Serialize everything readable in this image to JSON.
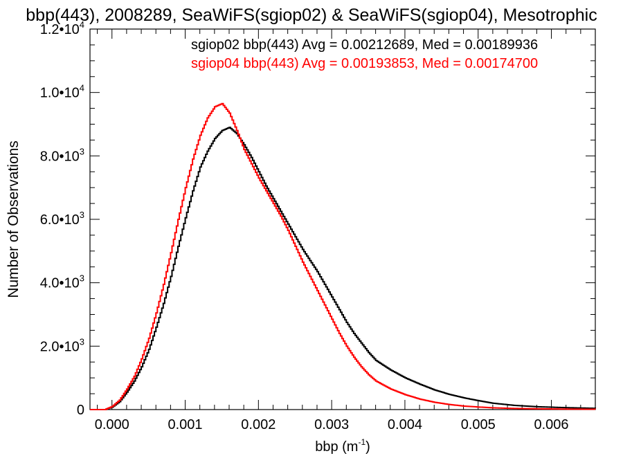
{
  "chart_data": {
    "type": "line",
    "title": "bbp(443), 2008289, SeaWiFS(sgiop02) & SeaWiFS(sgiop04), Mesotrophic",
    "xlabel": "bbp (m",
    "xlabel_sup": "-1",
    "xlabel_close": ")",
    "ylabel": "Number of Observations",
    "xlim": [
      -0.0003,
      0.0066
    ],
    "ylim": [
      0,
      12000
    ],
    "x_ticks": [
      0.0,
      0.001,
      0.002,
      0.003,
      0.004,
      0.005,
      0.006
    ],
    "x_tick_labels": [
      "0.000",
      "0.001",
      "0.002",
      "0.003",
      "0.004",
      "0.005",
      "0.006"
    ],
    "y_ticks": [
      0,
      2000,
      4000,
      6000,
      8000,
      10000,
      12000
    ],
    "y_tick_labels": [
      {
        "base": "0",
        "exp": ""
      },
      {
        "base": "2.0•10",
        "exp": "3"
      },
      {
        "base": "4.0•10",
        "exp": "3"
      },
      {
        "base": "6.0•10",
        "exp": "3"
      },
      {
        "base": "8.0•10",
        "exp": "3"
      },
      {
        "base": "1.0•10",
        "exp": "4"
      },
      {
        "base": "1.2•10",
        "exp": "4"
      }
    ],
    "grid": false,
    "legend_position": "top-right",
    "series": [
      {
        "name": "sgiop02 bbp(443) Avg = 0.00212689, Med = 0.00189936",
        "color": "#000000",
        "x": [
          -0.0003,
          -0.0001,
          0.0,
          0.0001,
          0.0002,
          0.0003,
          0.0004,
          0.0005,
          0.0006,
          0.0007,
          0.0008,
          0.0009,
          0.001,
          0.0011,
          0.0012,
          0.0013,
          0.0014,
          0.0015,
          0.0016,
          0.0017,
          0.0018,
          0.0019,
          0.002,
          0.0021,
          0.0022,
          0.0023,
          0.0024,
          0.0025,
          0.0026,
          0.0027,
          0.0028,
          0.0029,
          0.003,
          0.0031,
          0.0032,
          0.0033,
          0.0034,
          0.0035,
          0.0036,
          0.0038,
          0.004,
          0.0042,
          0.0044,
          0.0046,
          0.0048,
          0.005,
          0.0052,
          0.0055,
          0.0058,
          0.0062,
          0.0066
        ],
        "y": [
          0,
          0,
          80,
          250,
          550,
          900,
          1350,
          1900,
          2600,
          3350,
          4200,
          5150,
          6050,
          6900,
          7650,
          8150,
          8550,
          8800,
          8900,
          8700,
          8350,
          7950,
          7500,
          7050,
          6650,
          6250,
          5850,
          5450,
          5050,
          4700,
          4350,
          3950,
          3550,
          3150,
          2750,
          2400,
          2100,
          1800,
          1550,
          1250,
          1000,
          800,
          620,
          480,
          370,
          280,
          200,
          130,
          90,
          60,
          40
        ]
      },
      {
        "name": "sgiop04 bbp(443) Avg = 0.00193853, Med = 0.00174700",
        "color": "#ff0000",
        "x": [
          -0.0003,
          -0.0001,
          0.0,
          0.0001,
          0.0002,
          0.0003,
          0.0004,
          0.0005,
          0.0006,
          0.0007,
          0.0008,
          0.0009,
          0.001,
          0.0011,
          0.0012,
          0.0013,
          0.0014,
          0.0015,
          0.0016,
          0.0017,
          0.0018,
          0.0019,
          0.002,
          0.0021,
          0.0022,
          0.0023,
          0.0024,
          0.0025,
          0.0026,
          0.0027,
          0.0028,
          0.0029,
          0.003,
          0.0031,
          0.0032,
          0.0033,
          0.0034,
          0.0035,
          0.0036,
          0.0038,
          0.004,
          0.0042,
          0.0044,
          0.0046,
          0.0048,
          0.005,
          0.0052,
          0.0055,
          0.0058,
          0.0062,
          0.0066
        ],
        "y": [
          0,
          0,
          100,
          300,
          650,
          1050,
          1600,
          2250,
          3050,
          3950,
          4950,
          6000,
          7000,
          7900,
          8650,
          9200,
          9550,
          9650,
          9350,
          8800,
          8200,
          7750,
          7300,
          6900,
          6500,
          6100,
          5650,
          5150,
          4650,
          4200,
          3750,
          3300,
          2850,
          2400,
          2000,
          1650,
          1350,
          1100,
          900,
          650,
          470,
          330,
          230,
          160,
          110,
          80,
          55,
          35,
          25,
          15,
          10
        ]
      }
    ]
  }
}
